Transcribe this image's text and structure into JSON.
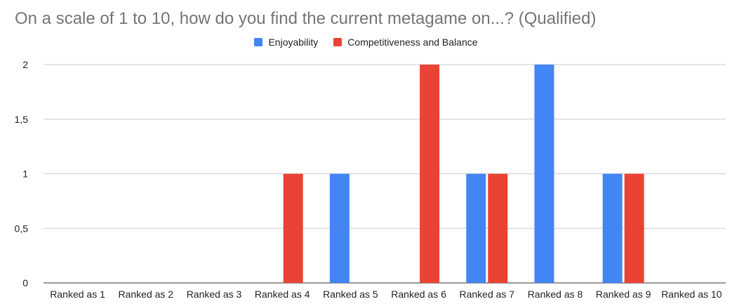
{
  "chart_data": {
    "type": "bar",
    "title": "On a scale of 1 to 10, how do you find the current metagame on...? (Qualified)",
    "xlabel": "",
    "ylabel": "",
    "categories": [
      "Ranked as 1",
      "Ranked as 2",
      "Ranked as 3",
      "Ranked as 4",
      "Ranked as 5",
      "Ranked as 6",
      "Ranked as 7",
      "Ranked as 8",
      "Ranked as 9",
      "Ranked as 10"
    ],
    "series": [
      {
        "name": "Enjoyability",
        "color": "#4285f4",
        "values": [
          0,
          0,
          0,
          0,
          1,
          0,
          1,
          2,
          1,
          0
        ]
      },
      {
        "name": "Competitiveness and Balance",
        "color": "#ea4335",
        "values": [
          0,
          0,
          0,
          1,
          0,
          2,
          1,
          0,
          1,
          0
        ]
      }
    ],
    "ylim": [
      0,
      2
    ],
    "yticks": [
      0,
      0.5,
      1,
      1.5,
      2
    ],
    "ytick_labels": [
      "0",
      "0,5",
      "1",
      "1,5",
      "2"
    ],
    "grid": true,
    "legend_position": "top"
  }
}
